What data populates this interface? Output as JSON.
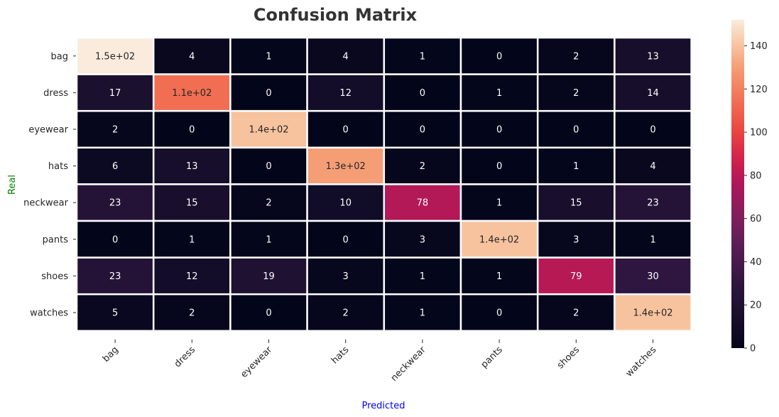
{
  "chart_data": {
    "type": "heatmap",
    "title": "Confusion Matrix",
    "xlabel": "Predicted",
    "ylabel": "Real",
    "xlabel_color": "#0000ff",
    "ylabel_color": "#008000",
    "colormap": "rocket",
    "x_categories": [
      "bag",
      "dress",
      "eyewear",
      "hats",
      "neckwear",
      "pants",
      "shoes",
      "watches"
    ],
    "y_categories": [
      "bag",
      "dress",
      "eyewear",
      "hats",
      "neckwear",
      "pants",
      "shoes",
      "watches"
    ],
    "values": [
      [
        152,
        4,
        1,
        4,
        1,
        0,
        2,
        13
      ],
      [
        17,
        114,
        0,
        12,
        0,
        1,
        2,
        14
      ],
      [
        2,
        0,
        140,
        0,
        0,
        0,
        0,
        0
      ],
      [
        6,
        13,
        0,
        130,
        2,
        0,
        1,
        4
      ],
      [
        23,
        15,
        2,
        10,
        78,
        1,
        15,
        23
      ],
      [
        0,
        1,
        1,
        0,
        3,
        140,
        3,
        1
      ],
      [
        23,
        12,
        19,
        3,
        1,
        1,
        79,
        30
      ],
      [
        5,
        2,
        0,
        2,
        1,
        0,
        2,
        140
      ]
    ],
    "annotations": [
      [
        "1.5e+02",
        "4",
        "1",
        "4",
        "1",
        "0",
        "2",
        "13"
      ],
      [
        "17",
        "1.1e+02",
        "0",
        "12",
        "0",
        "1",
        "2",
        "14"
      ],
      [
        "2",
        "0",
        "1.4e+02",
        "0",
        "0",
        "0",
        "0",
        "0"
      ],
      [
        "6",
        "13",
        "0",
        "1.3e+02",
        "2",
        "0",
        "1",
        "4"
      ],
      [
        "23",
        "15",
        "2",
        "10",
        "78",
        "1",
        "15",
        "23"
      ],
      [
        "0",
        "1",
        "1",
        "0",
        "3",
        "1.4e+02",
        "3",
        "1"
      ],
      [
        "23",
        "12",
        "19",
        "3",
        "1",
        "1",
        "79",
        "30"
      ],
      [
        "5",
        "2",
        "0",
        "2",
        "1",
        "0",
        "2",
        "1.4e+02"
      ]
    ],
    "vmin": 0,
    "vmax": 152,
    "colorbar_ticks": [
      0,
      20,
      40,
      60,
      80,
      100,
      120,
      140
    ],
    "grid_lines_color": "#ffffff"
  }
}
